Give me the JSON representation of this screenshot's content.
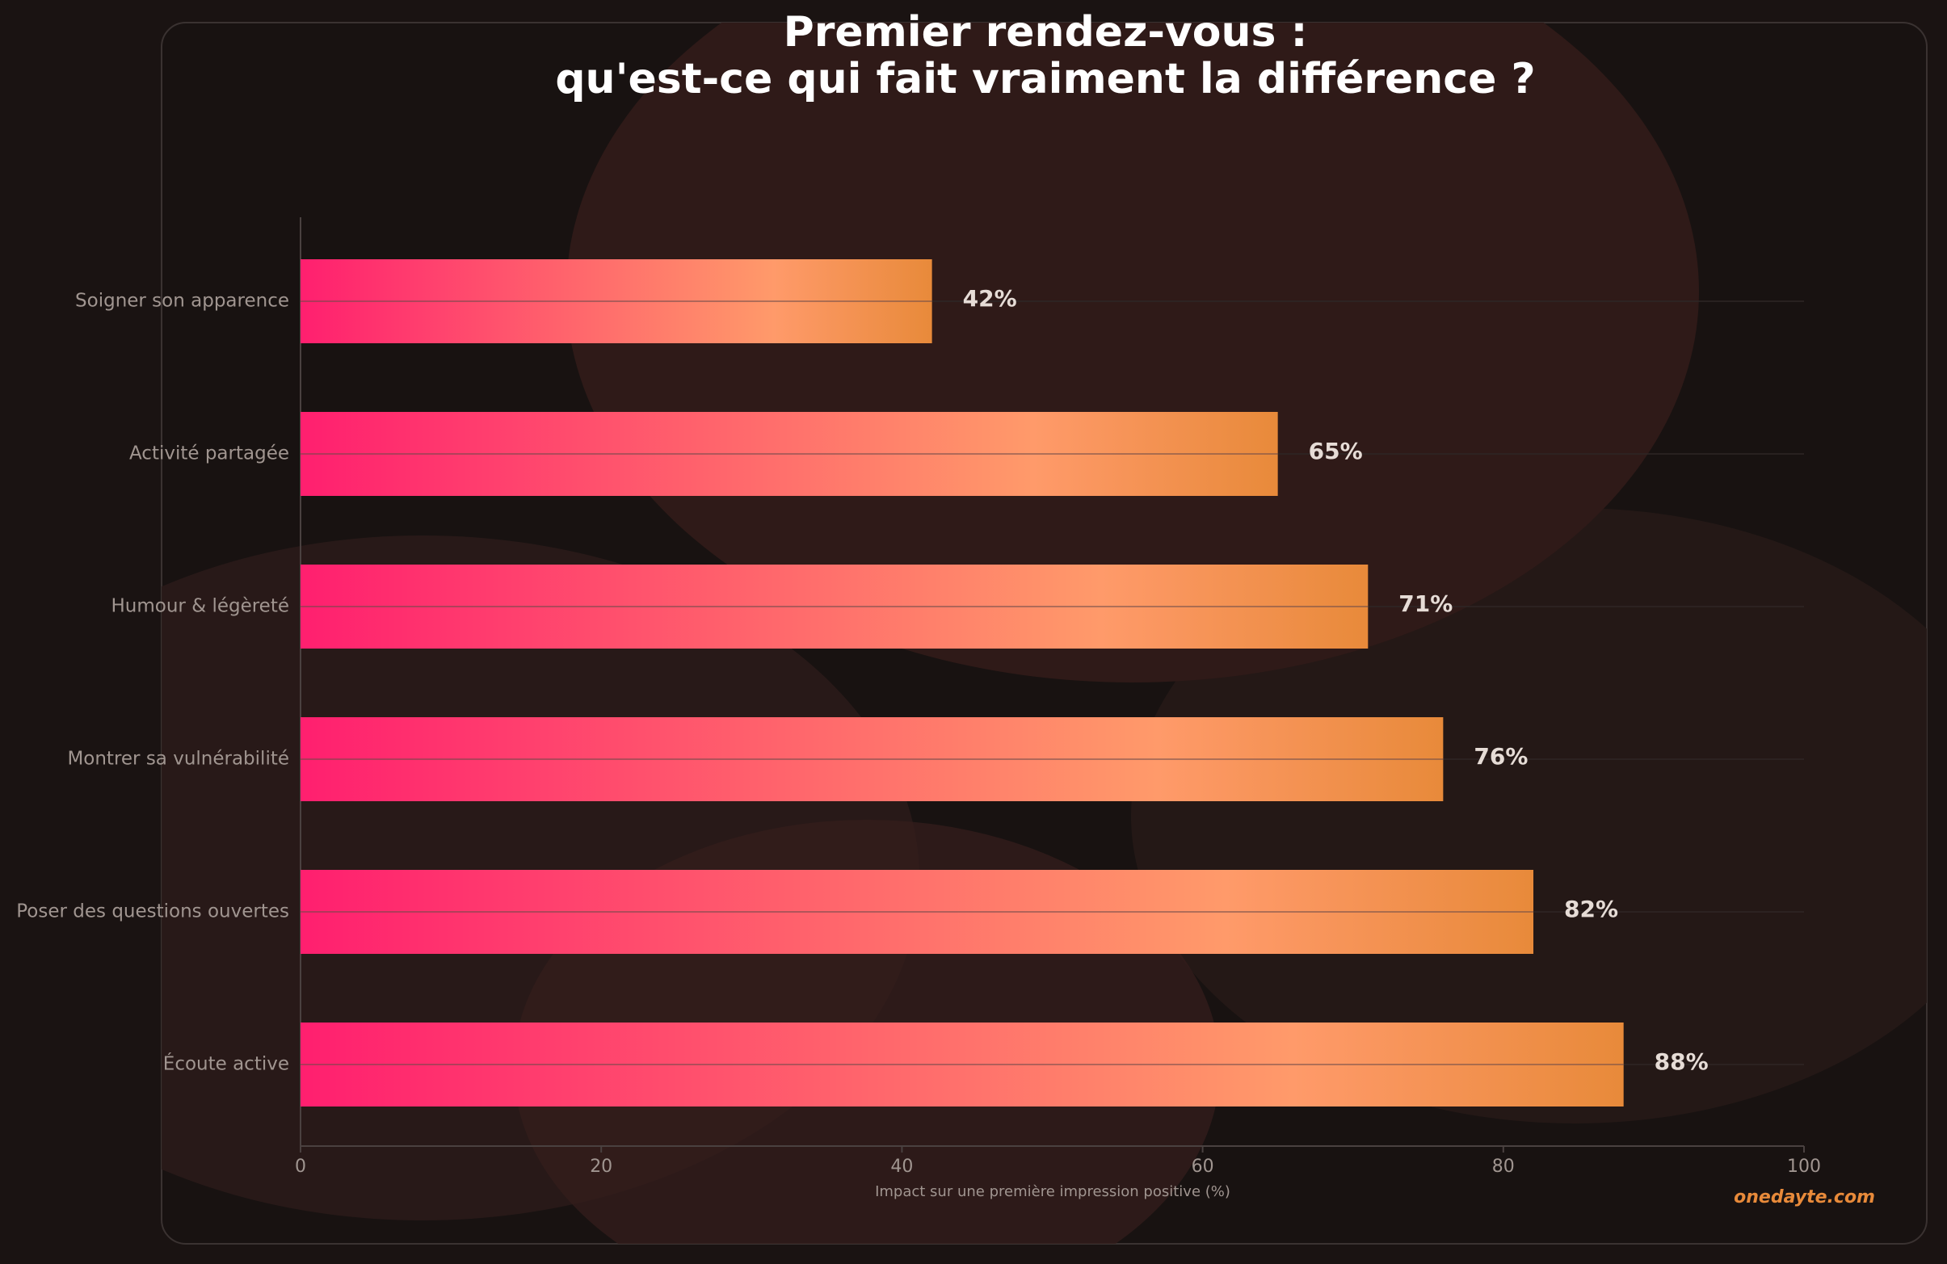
{
  "chart_data": {
    "type": "barh",
    "title": "Premier rendez-vous :",
    "subtitle": "qu'est-ce qui fait vraiment la différence ?",
    "categories": [
      "Soigner son apparence",
      "Activité partagée",
      "Humour & légèreté",
      "Montrer sa vulnérabilité",
      "Poser des questions ouvertes",
      "Écoute active"
    ],
    "values": [
      42,
      65,
      71,
      76,
      82,
      88
    ],
    "value_labels": [
      "42%",
      "65%",
      "71%",
      "76%",
      "82%",
      "88%"
    ],
    "colors": [
      "#ff1f6f",
      "#ff9a6a",
      "#e88a3a"
    ],
    "xlim": [
      0,
      100
    ],
    "xticks": [
      0,
      20,
      40,
      60,
      80,
      100
    ],
    "xlabel": "Impact sur une première impression positive (%)",
    "watermark": "onedayte.com"
  }
}
